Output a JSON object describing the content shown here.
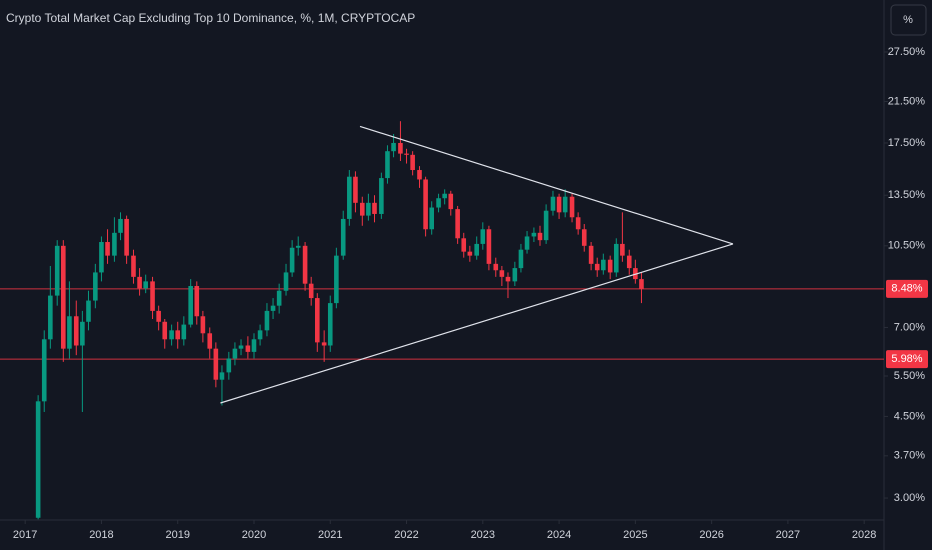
{
  "chart_data": {
    "type": "candlestick",
    "title": "Crypto Total Market Cap Excluding Top 10 Dominance, %, 1M, CRYPTOCAP",
    "scale_button": "%",
    "log_scale": true,
    "up_color": "#089981",
    "down_color": "#f23645",
    "x": [
      2017.17,
      2017.25,
      2017.33,
      2017.42,
      2017.5,
      2017.58,
      2017.67,
      2017.75,
      2017.83,
      2017.92,
      2018.0,
      2018.08,
      2018.17,
      2018.25,
      2018.33,
      2018.42,
      2018.5,
      2018.58,
      2018.67,
      2018.75,
      2018.83,
      2018.92,
      2019.0,
      2019.08,
      2019.17,
      2019.25,
      2019.33,
      2019.42,
      2019.5,
      2019.58,
      2019.67,
      2019.75,
      2019.83,
      2019.92,
      2020.0,
      2020.08,
      2020.17,
      2020.25,
      2020.33,
      2020.42,
      2020.5,
      2020.58,
      2020.67,
      2020.75,
      2020.83,
      2020.92,
      2021.0,
      2021.08,
      2021.17,
      2021.25,
      2021.33,
      2021.42,
      2021.5,
      2021.58,
      2021.67,
      2021.75,
      2021.83,
      2021.92,
      2022.0,
      2022.08,
      2022.17,
      2022.25,
      2022.33,
      2022.42,
      2022.5,
      2022.58,
      2022.67,
      2022.75,
      2022.83,
      2022.92,
      2023.0,
      2023.08,
      2023.17,
      2023.25,
      2023.33,
      2023.42,
      2023.5,
      2023.58,
      2023.67,
      2023.75,
      2023.83,
      2023.92,
      2024.0,
      2024.08,
      2024.17,
      2024.25,
      2024.33,
      2024.42,
      2024.5,
      2024.58,
      2024.67,
      2024.75,
      2024.83,
      2024.92,
      2025.0,
      2025.08
    ],
    "open": [
      2.72,
      4.85,
      6.6,
      8.2,
      10.5,
      6.3,
      7.4,
      6.4,
      7.2,
      8.0,
      9.2,
      10.7,
      10.0,
      11.2,
      12.0,
      10.0,
      9.0,
      8.5,
      8.8,
      7.6,
      7.2,
      6.6,
      6.9,
      6.6,
      7.1,
      8.6,
      7.4,
      6.8,
      6.3,
      5.4,
      5.6,
      6.0,
      6.3,
      6.4,
      6.2,
      6.6,
      6.9,
      7.6,
      7.8,
      8.4,
      9.2,
      10.4,
      10.5,
      8.7,
      8.1,
      6.5,
      6.4,
      7.9,
      10.0,
      12.0,
      14.8,
      13.0,
      12.2,
      13.0,
      12.3,
      14.7,
      16.8,
      17.5,
      16.6,
      16.5,
      15.3,
      14.6,
      11.4,
      12.7,
      13.3,
      13.6,
      12.6,
      10.9,
      10.2,
      10.0,
      10.6,
      11.4,
      9.6,
      9.3,
      9.0,
      8.8,
      9.4,
      10.3,
      11.0,
      11.2,
      10.8,
      12.5,
      13.4,
      12.4,
      13.4,
      12.1,
      11.4,
      10.5,
      9.6,
      9.3,
      9.8,
      9.2,
      10.6,
      10.0,
      9.4,
      8.9
    ],
    "high": [
      5.0,
      6.9,
      9.5,
      10.8,
      10.8,
      8.8,
      8.0,
      7.6,
      8.4,
      9.6,
      11.0,
      11.4,
      12.1,
      12.4,
      12.2,
      10.3,
      9.4,
      9.1,
      9.0,
      7.8,
      7.3,
      7.1,
      7.2,
      7.4,
      8.9,
      8.8,
      7.6,
      7.0,
      6.5,
      5.8,
      6.2,
      6.5,
      6.6,
      6.7,
      6.8,
      7.1,
      7.9,
      8.1,
      8.7,
      9.6,
      10.8,
      11.0,
      10.7,
      9.0,
      8.3,
      6.9,
      8.2,
      10.4,
      12.5,
      15.3,
      15.2,
      13.4,
      13.6,
      13.5,
      15.1,
      17.3,
      18.3,
      19.5,
      17.0,
      16.8,
      15.6,
      14.8,
      13.1,
      13.6,
      13.9,
      13.8,
      12.8,
      11.2,
      10.5,
      11.0,
      11.8,
      11.6,
      9.9,
      9.5,
      9.2,
      9.7,
      10.6,
      11.3,
      11.5,
      11.6,
      12.9,
      13.8,
      13.6,
      13.9,
      13.6,
      12.4,
      11.7,
      10.7,
      9.9,
      10.1,
      10.0,
      10.9,
      12.4,
      10.3,
      9.8,
      9.2
    ],
    "low": [
      2.7,
      4.6,
      6.3,
      7.8,
      5.9,
      6.0,
      6.1,
      4.6,
      6.9,
      7.7,
      8.8,
      9.6,
      9.7,
      10.8,
      9.6,
      8.7,
      8.2,
      8.3,
      7.3,
      6.9,
      6.3,
      6.4,
      6.3,
      6.4,
      7.0,
      7.1,
      6.5,
      6.0,
      5.2,
      4.75,
      5.4,
      5.8,
      6.1,
      6.0,
      6.0,
      6.4,
      6.7,
      7.3,
      7.5,
      8.2,
      9.0,
      10.0,
      8.4,
      7.8,
      6.2,
      5.9,
      6.2,
      7.7,
      9.8,
      11.6,
      12.4,
      11.6,
      11.9,
      11.8,
      12.0,
      14.3,
      16.3,
      16.0,
      15.8,
      14.9,
      14.0,
      11.0,
      11.1,
      12.4,
      12.9,
      12.2,
      10.6,
      9.9,
      9.7,
      9.8,
      10.3,
      9.3,
      9.0,
      8.6,
      8.1,
      8.6,
      9.2,
      10.1,
      10.7,
      10.5,
      10.6,
      12.2,
      12.0,
      12.1,
      11.8,
      11.1,
      10.2,
      9.3,
      9.0,
      9.1,
      8.9,
      9.0,
      9.7,
      9.1,
      8.7,
      7.9
    ],
    "close": [
      4.85,
      6.6,
      8.2,
      10.5,
      6.3,
      7.4,
      6.4,
      7.2,
      8.0,
      9.2,
      10.7,
      10.0,
      11.2,
      12.0,
      10.0,
      9.0,
      8.5,
      8.8,
      7.6,
      7.2,
      6.6,
      6.9,
      6.6,
      7.1,
      8.6,
      7.4,
      6.8,
      6.3,
      5.4,
      5.6,
      6.0,
      6.3,
      6.4,
      6.2,
      6.6,
      6.9,
      7.6,
      7.8,
      8.4,
      9.2,
      10.4,
      10.5,
      8.7,
      8.1,
      6.5,
      6.4,
      7.9,
      10.0,
      12.0,
      14.8,
      13.0,
      12.2,
      13.0,
      12.3,
      14.7,
      16.8,
      17.5,
      16.6,
      16.5,
      15.3,
      14.6,
      11.4,
      12.7,
      13.3,
      13.6,
      12.6,
      10.9,
      10.2,
      10.0,
      10.6,
      11.4,
      9.6,
      9.3,
      9.0,
      8.8,
      9.4,
      10.3,
      11.0,
      11.2,
      10.8,
      12.5,
      13.4,
      12.4,
      13.4,
      12.1,
      11.4,
      10.5,
      9.6,
      9.3,
      9.8,
      9.2,
      10.6,
      10.0,
      9.4,
      8.9,
      8.48
    ],
    "trendlines": [
      {
        "x": [
          2021.39,
          2026.28
        ],
        "y": [
          19.0,
          10.6
        ]
      },
      {
        "x": [
          2019.56,
          2026.28
        ],
        "y": [
          4.81,
          10.6
        ]
      }
    ],
    "hlines": [
      {
        "value": 8.48,
        "label": "8.48%",
        "color": "#f23645"
      },
      {
        "value": 5.98,
        "label": "5.98%",
        "color": "#f23645"
      }
    ],
    "xlim": [
      2016.67,
      2028.26
    ],
    "ylim": [
      2.69,
      35.6
    ],
    "xticks": [
      2017,
      2018,
      2019,
      2020,
      2021,
      2022,
      2023,
      2024,
      2025,
      2026,
      2027,
      2028
    ],
    "yticks": [
      {
        "value": 3.0,
        "label": "3.00%"
      },
      {
        "value": 3.7,
        "label": "3.70%"
      },
      {
        "value": 4.5,
        "label": "4.50%"
      },
      {
        "value": 5.5,
        "label": "5.50%"
      },
      {
        "value": 7.0,
        "label": "7.00%"
      },
      {
        "value": 10.5,
        "label": "10.50%"
      },
      {
        "value": 13.5,
        "label": "13.50%"
      },
      {
        "value": 17.5,
        "label": "17.50%"
      },
      {
        "value": 21.5,
        "label": "21.50%"
      },
      {
        "value": 27.5,
        "label": "27.50%"
      }
    ]
  }
}
